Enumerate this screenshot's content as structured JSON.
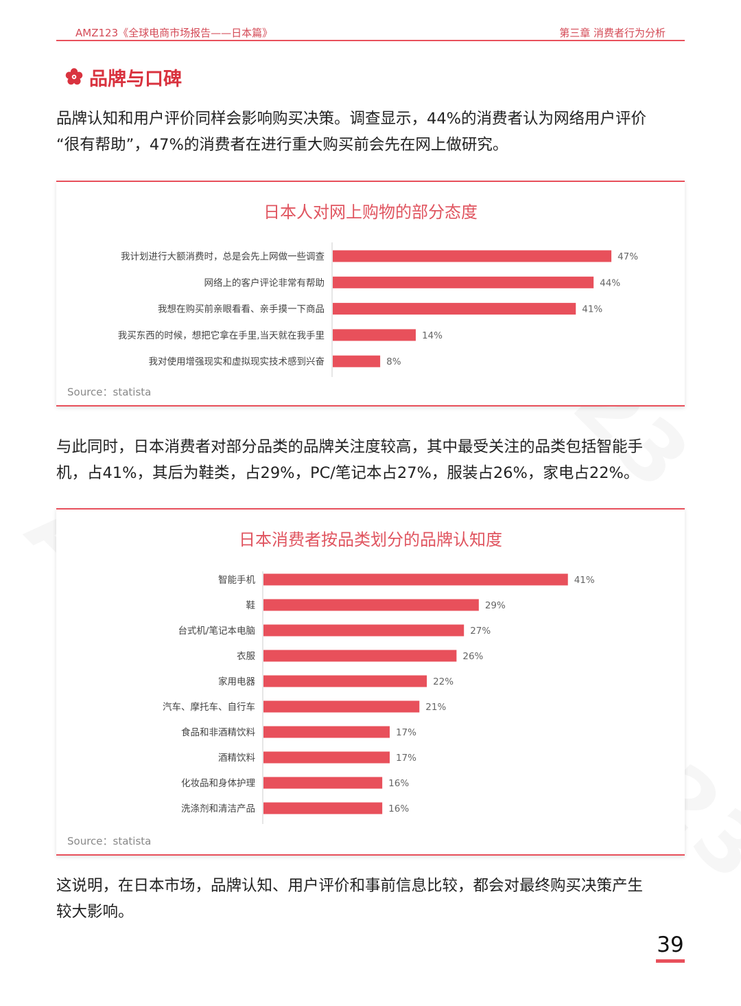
{
  "header": {
    "left": "AMZ123《全球电商市场报告——日本篇》",
    "right": "第三章 消费者行为分析"
  },
  "section": {
    "icon": "sakura-flower-icon",
    "title": "品牌与口碑"
  },
  "paragraphs": {
    "p1_line1": "品牌认知和用户评价同样会影响购买决策。调查显示，44%的消费者认为网络用户评价",
    "p1_line2": "“很有帮助”，47%的消费者在进行重大购买前会先在网上做研究。",
    "p2_line1": "与此同时，日本消费者对部分品类的品牌关注度较高，其中最受关注的品类包括智能手",
    "p2_line2": "机，占41%，其后为鞋类，占29%，PC/笔记本占27%，服装占26%，家电占22%。",
    "p3_line1": "这说明，在日本市场，品牌认知、用户评价和事前信息比较，都会对最终购买决策产生",
    "p3_line2": "较大影响。"
  },
  "watermark": "AMZ123",
  "colors": {
    "accent": "#e8505b",
    "bar": "#e8505b",
    "title": "#e05560"
  },
  "chart_data": [
    {
      "type": "bar",
      "orientation": "horizontal",
      "title": "日本人对网上购物的部分态度",
      "categories": [
        "我计划进行大额消费时，总是会先上网做一些调查",
        "网络上的客户评论非常有帮助",
        "我想在购买前亲眼看看、亲手摸一下商品",
        "我买东西的时候，想把它拿在手里,当天就在我手里",
        "我对使用增强现实和虚拟现实技术感到兴奋"
      ],
      "values": [
        47,
        44,
        41,
        14,
        8
      ],
      "value_labels": [
        "47%",
        "44%",
        "41%",
        "14%",
        "8%"
      ],
      "source": "Source：statista",
      "xlim": [
        0,
        50
      ],
      "grid": false
    },
    {
      "type": "bar",
      "orientation": "horizontal",
      "title": "日本消费者按品类划分的品牌认知度",
      "categories": [
        "智能手机",
        "鞋",
        "台式机/笔记本电脑",
        "衣服",
        "家用电器",
        "汽车、摩托车、自行车",
        "食品和非酒精饮料",
        "酒精饮料",
        "化妆品和身体护理",
        "洗涤剂和清洁产品"
      ],
      "values": [
        41,
        29,
        27,
        26,
        22,
        21,
        17,
        17,
        16,
        16
      ],
      "value_labels": [
        "41%",
        "29%",
        "27%",
        "26%",
        "22%",
        "21%",
        "17%",
        "17%",
        "16%",
        "16%"
      ],
      "source": "Source：statista",
      "xlim": [
        0,
        45
      ],
      "grid": false
    }
  ],
  "page_number": "39"
}
